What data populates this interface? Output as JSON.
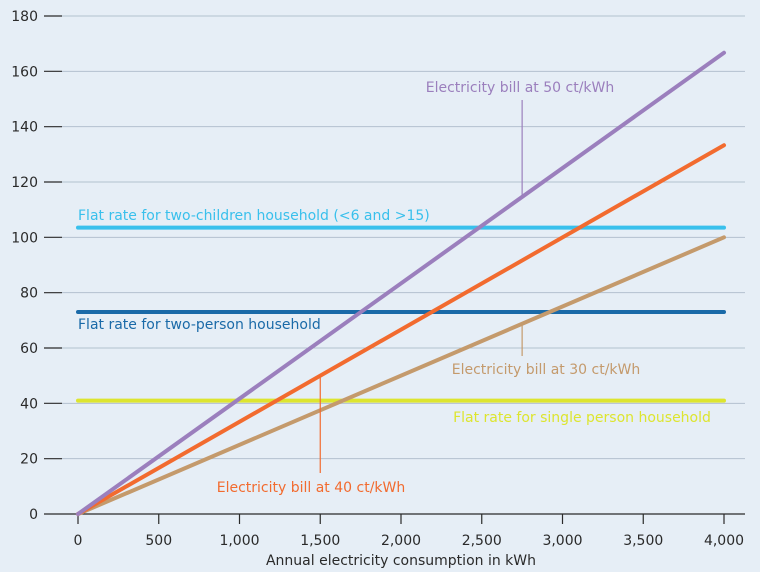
{
  "chart_data": {
    "type": "line",
    "x_unit_label": "Annual electricity consumption in kWh",
    "xlabel": "Annual electricity consumption in kWh",
    "ylabel": "",
    "xlim": [
      0,
      4000
    ],
    "ylim": [
      0,
      180
    ],
    "x_ticks": [
      0,
      500,
      1000,
      1500,
      2000,
      2500,
      3000,
      3500,
      4000
    ],
    "x_tick_labels": [
      "0",
      "500",
      "1,000",
      "1,500",
      "2,000",
      "2,500",
      "3,000",
      "3,500",
      "4,000"
    ],
    "y_ticks": [
      0,
      20,
      40,
      60,
      80,
      100,
      120,
      140,
      160,
      180
    ],
    "y_tick_labels": [
      "0",
      "20",
      "40",
      "60",
      "80",
      "100",
      "120",
      "140",
      "160",
      "180"
    ],
    "grid": "horizontal",
    "series": [
      {
        "name": "Electricity bill at 50 ct/kWh",
        "color": "#9b7fbd",
        "x": [
          0,
          4000
        ],
        "y": [
          0,
          166.7
        ]
      },
      {
        "name": "Electricity bill at 40 ct/kWh",
        "color": "#f26b2f",
        "x": [
          0,
          4000
        ],
        "y": [
          0,
          133.3
        ]
      },
      {
        "name": "Electricity bill at 30 ct/kWh",
        "color": "#c49a6c",
        "x": [
          0,
          4000
        ],
        "y": [
          0,
          100
        ]
      },
      {
        "name": "Flat rate for two-children household (<6 and >15)",
        "color": "#39c0ec",
        "x": [
          0,
          4000
        ],
        "y": [
          103.5,
          103.5
        ]
      },
      {
        "name": "Flat rate for two-person household",
        "color": "#1a6aa8",
        "x": [
          0,
          4000
        ],
        "y": [
          73,
          73
        ]
      },
      {
        "name": "Flat rate for single person household",
        "color": "#dde52f",
        "x": [
          0,
          4000
        ],
        "y": [
          41,
          41
        ]
      }
    ]
  }
}
